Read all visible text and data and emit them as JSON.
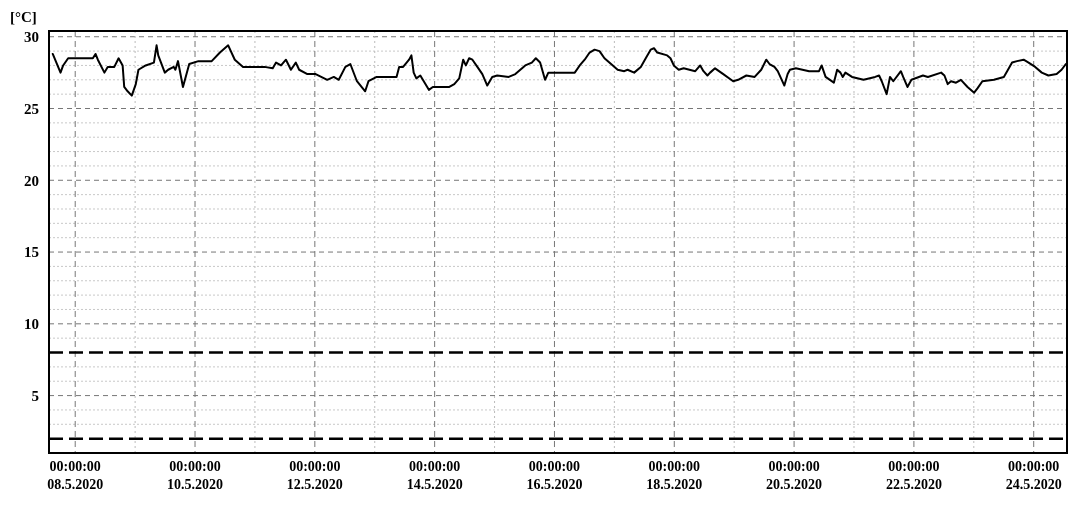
{
  "chart_data": {
    "type": "line",
    "ylabel": "[°C]",
    "xlim": [
      "2020-05-07T13:30",
      "2020-05-24T13:20"
    ],
    "ylim": [
      1,
      30.4
    ],
    "xticks": [
      {
        "value": "2020-05-08",
        "label": "00:00:00\n08.5.2020"
      },
      {
        "value": "2020-05-09",
        "label": null
      },
      {
        "value": "2020-05-10",
        "label": "00:00:00\n10.5.2020"
      },
      {
        "value": "2020-05-11",
        "label": null
      },
      {
        "value": "2020-05-12",
        "label": "00:00:00\n12.5.2020"
      },
      {
        "value": "2020-05-13",
        "label": null
      },
      {
        "value": "2020-05-14",
        "label": "00:00:00\n14.5.2020"
      },
      {
        "value": "2020-05-15",
        "label": null
      },
      {
        "value": "2020-05-16",
        "label": "00:00:00\n16.5.2020"
      },
      {
        "value": "2020-05-17",
        "label": null
      },
      {
        "value": "2020-05-18",
        "label": "00:00:00\n18.5.2020"
      },
      {
        "value": "2020-05-19",
        "label": null
      },
      {
        "value": "2020-05-20",
        "label": "00:00:00\n20.5.2020"
      },
      {
        "value": "2020-05-21",
        "label": null
      },
      {
        "value": "2020-05-22",
        "label": "00:00:00\n22.5.2020"
      },
      {
        "value": "2020-05-23",
        "label": null
      },
      {
        "value": "2020-05-24",
        "label": "00:00:00\n24.5.2020"
      }
    ],
    "yticks": [
      {
        "value": 3,
        "label": null
      },
      {
        "value": 4,
        "label": null
      },
      5,
      {
        "value": 6,
        "label": null
      },
      {
        "value": 7,
        "label": null
      },
      {
        "value": 9,
        "label": null
      },
      10,
      {
        "value": 11,
        "label": null
      },
      {
        "value": 12,
        "label": null
      },
      {
        "value": 13,
        "label": null
      },
      {
        "value": 14,
        "label": null
      },
      15,
      {
        "value": 16,
        "label": null
      },
      {
        "value": 17,
        "label": null
      },
      {
        "value": 18,
        "label": null
      },
      {
        "value": 19,
        "label": null
      },
      20,
      {
        "value": 21,
        "label": null
      },
      {
        "value": 22,
        "label": null
      },
      {
        "value": 23,
        "label": null
      },
      {
        "value": 24,
        "label": null
      },
      25,
      {
        "value": 26,
        "label": null
      },
      {
        "value": 27,
        "label": null
      },
      {
        "value": 28,
        "label": null
      },
      {
        "value": 29,
        "label": null
      },
      30
    ],
    "grid": true,
    "line_style": "solid",
    "ref_lines": [
      {
        "axis": "y",
        "value": 8,
        "color": "#000000",
        "line_style": "dashed"
      },
      {
        "axis": "y",
        "value": 2,
        "color": "#000000",
        "line_style": "dashed"
      }
    ],
    "series": [
      {
        "color": "#000000",
        "x": [
          "2020-05-07T15:00",
          "2020-05-07T18:07",
          "2020-05-07T19:10",
          "2020-05-07T21:10",
          "2020-05-08T07:04",
          "2020-05-08T08:08",
          "2020-05-08T09:04",
          "2020-05-08T11:42",
          "2020-05-08T13:01",
          "2020-05-08T15:40",
          "2020-05-08T17:23",
          "2020-05-08T19:00",
          "2020-05-08T19:38",
          "2020-05-08T21:00",
          "2020-05-08T22:40",
          "2020-05-09T00:16",
          "2020-05-09T01:20",
          "2020-05-09T04:14",
          "2020-05-09T07:32",
          "2020-05-09T08:36",
          "2020-05-09T09:16",
          "2020-05-09T11:54",
          "2020-05-09T13:14",
          "2020-05-09T15:28",
          "2020-05-09T16:08",
          "2020-05-09T17:11",
          "2020-05-09T19:10",
          "2020-05-09T21:41",
          "2020-05-10T01:23",
          "2020-05-10T06:41",
          "2020-05-10T09:59",
          "2020-05-10T13:17",
          "2020-05-10T15:56",
          "2020-05-10T19:14",
          "2020-05-11T03:50",
          "2020-05-11T07:08",
          "2020-05-11T08:28",
          "2020-05-11T10:27",
          "2020-05-11T12:26",
          "2020-05-11T14:25",
          "2020-05-11T16:23",
          "2020-05-11T17:43",
          "2020-05-11T21:01",
          "2020-05-12T00:20",
          "2020-05-12T04:58",
          "2020-05-12T07:36",
          "2020-05-12T09:35",
          "2020-05-12T12:14",
          "2020-05-12T14:13",
          "2020-05-12T16:52",
          "2020-05-12T20:10",
          "2020-05-12T21:29",
          "2020-05-13T00:47",
          "2020-05-13T08:44",
          "2020-05-13T09:47",
          "2020-05-13T11:22",
          "2020-05-13T13:45",
          "2020-05-13T14:41",
          "2020-05-13T15:36",
          "2020-05-13T16:40",
          "2020-05-13T18:15",
          "2020-05-13T21:41",
          "2020-05-13T23:16",
          "2020-05-14T05:53",
          "2020-05-14T07:52",
          "2020-05-14T09:51",
          "2020-05-14T11:26",
          "2020-05-14T12:30",
          "2020-05-14T13:49",
          "2020-05-14T15:08",
          "2020-05-14T17:07",
          "2020-05-14T19:06",
          "2020-05-14T21:05",
          "2020-05-14T23:04",
          "2020-05-15T01:04",
          "2020-05-15T05:41",
          "2020-05-15T08:20",
          "2020-05-15T12:18",
          "2020-05-15T14:56",
          "2020-05-15T16:32",
          "2020-05-15T18:15",
          "2020-05-15T20:14",
          "2020-05-15T21:33",
          "2020-05-16T08:08",
          "2020-05-16T10:07",
          "2020-05-16T12:06",
          "2020-05-16T14:05",
          "2020-05-16T16:04",
          "2020-05-16T18:03",
          "2020-05-16T20:02",
          "2020-05-16T22:41",
          "2020-05-17T01:19",
          "2020-05-17T03:58",
          "2020-05-17T05:17",
          "2020-05-17T07:56",
          "2020-05-17T10:35",
          "2020-05-17T12:34",
          "2020-05-17T14:32",
          "2020-05-17T15:52",
          "2020-05-17T17:11",
          "2020-05-17T21:10",
          "2020-05-17T22:29",
          "2020-05-17T23:48",
          "2020-05-18T01:47",
          "2020-05-18T03:46",
          "2020-05-18T08:24",
          "2020-05-18T10:23",
          "2020-05-18T11:42",
          "2020-05-18T13:17",
          "2020-05-18T14:21",
          "2020-05-18T16:20",
          "2020-05-18T19:38",
          "2020-05-18T23:36",
          "2020-05-19T01:35",
          "2020-05-19T04:53",
          "2020-05-19T08:12",
          "2020-05-19T10:50",
          "2020-05-19T12:50",
          "2020-05-19T14:09",
          "2020-05-19T16:08",
          "2020-05-19T17:27",
          "2020-05-19T20:06",
          "2020-05-19T21:25",
          "2020-05-19T22:20",
          "2020-05-20T00:43",
          "2020-05-20T06:01",
          "2020-05-20T09:59",
          "2020-05-20T11:02",
          "2020-05-20T12:37",
          "2020-05-20T15:56",
          "2020-05-20T17:15",
          "2020-05-20T18:34",
          "2020-05-20T19:30",
          "2020-05-20T20:34",
          "2020-05-20T23:12",
          "2020-05-21T03:50",
          "2020-05-21T08:28",
          "2020-05-21T10:03",
          "2020-05-21T11:07",
          "2020-05-21T13:05",
          "2020-05-21T14:25",
          "2020-05-21T15:44",
          "2020-05-21T18:47",
          "2020-05-21T19:42",
          "2020-05-21T21:25",
          "2020-05-21T23:01",
          "2020-05-22T03:38",
          "2020-05-22T05:37",
          "2020-05-22T10:55",
          "2020-05-22T12:14",
          "2020-05-22T13:33",
          "2020-05-22T14:52",
          "2020-05-22T16:52",
          "2020-05-22T18:50",
          "2020-05-22T21:29",
          "2020-05-23T00:08",
          "2020-05-23T01:27",
          "2020-05-23T03:26",
          "2020-05-23T08:04",
          "2020-05-23T12:02",
          "2020-05-23T13:21",
          "2020-05-23T15:20",
          "2020-05-23T17:19",
          "2020-05-23T19:58",
          "2020-05-23T21:56",
          "2020-05-24T00:35",
          "2020-05-24T03:14",
          "2020-05-24T05:53",
          "2020-05-24T09:11",
          "2020-05-24T11:10",
          "2020-05-24T12:53"
        ],
        "values": [
          28.8,
          27.5,
          28.0,
          28.5,
          28.5,
          28.8,
          28.4,
          27.5,
          27.9,
          27.9,
          28.5,
          28.0,
          26.5,
          26.2,
          25.9,
          26.7,
          27.7,
          28.0,
          28.2,
          29.4,
          28.7,
          27.5,
          27.7,
          27.9,
          27.7,
          28.3,
          26.5,
          28.1,
          28.3,
          28.3,
          28.9,
          29.4,
          28.4,
          27.9,
          27.9,
          27.8,
          28.2,
          28.0,
          28.4,
          27.7,
          28.2,
          27.7,
          27.4,
          27.4,
          27.0,
          27.2,
          27.0,
          27.9,
          28.1,
          26.9,
          26.2,
          26.9,
          27.2,
          27.2,
          27.9,
          27.9,
          28.4,
          28.7,
          27.5,
          27.1,
          27.3,
          26.3,
          26.5,
          26.5,
          26.7,
          27.1,
          28.4,
          28.0,
          28.5,
          28.4,
          27.9,
          27.4,
          26.6,
          27.2,
          27.3,
          27.2,
          27.4,
          28.0,
          28.2,
          28.5,
          28.2,
          27.0,
          27.5,
          27.5,
          28.0,
          28.4,
          28.9,
          29.1,
          29.0,
          28.5,
          28.1,
          27.7,
          27.6,
          27.7,
          27.5,
          27.9,
          28.5,
          29.1,
          29.2,
          28.9,
          28.7,
          28.5,
          28.0,
          27.7,
          27.8,
          27.6,
          28.0,
          27.6,
          27.3,
          27.5,
          27.8,
          27.4,
          26.9,
          27.0,
          27.3,
          27.2,
          27.7,
          28.4,
          28.1,
          27.9,
          27.6,
          26.6,
          27.4,
          27.7,
          27.8,
          27.6,
          27.6,
          28.0,
          27.2,
          26.8,
          27.7,
          27.5,
          27.2,
          27.5,
          27.2,
          27.0,
          27.2,
          27.3,
          26.9,
          26.0,
          27.2,
          26.9,
          27.6,
          27.2,
          26.5,
          27.0,
          27.3,
          27.2,
          27.5,
          27.3,
          26.7,
          26.9,
          26.8,
          27.0,
          26.5,
          26.1,
          26.4,
          26.9,
          27.0,
          27.2,
          27.6,
          28.2,
          28.3,
          28.4,
          28.2,
          27.9,
          27.5,
          27.3,
          27.4,
          27.7,
          28.1
        ]
      }
    ]
  }
}
